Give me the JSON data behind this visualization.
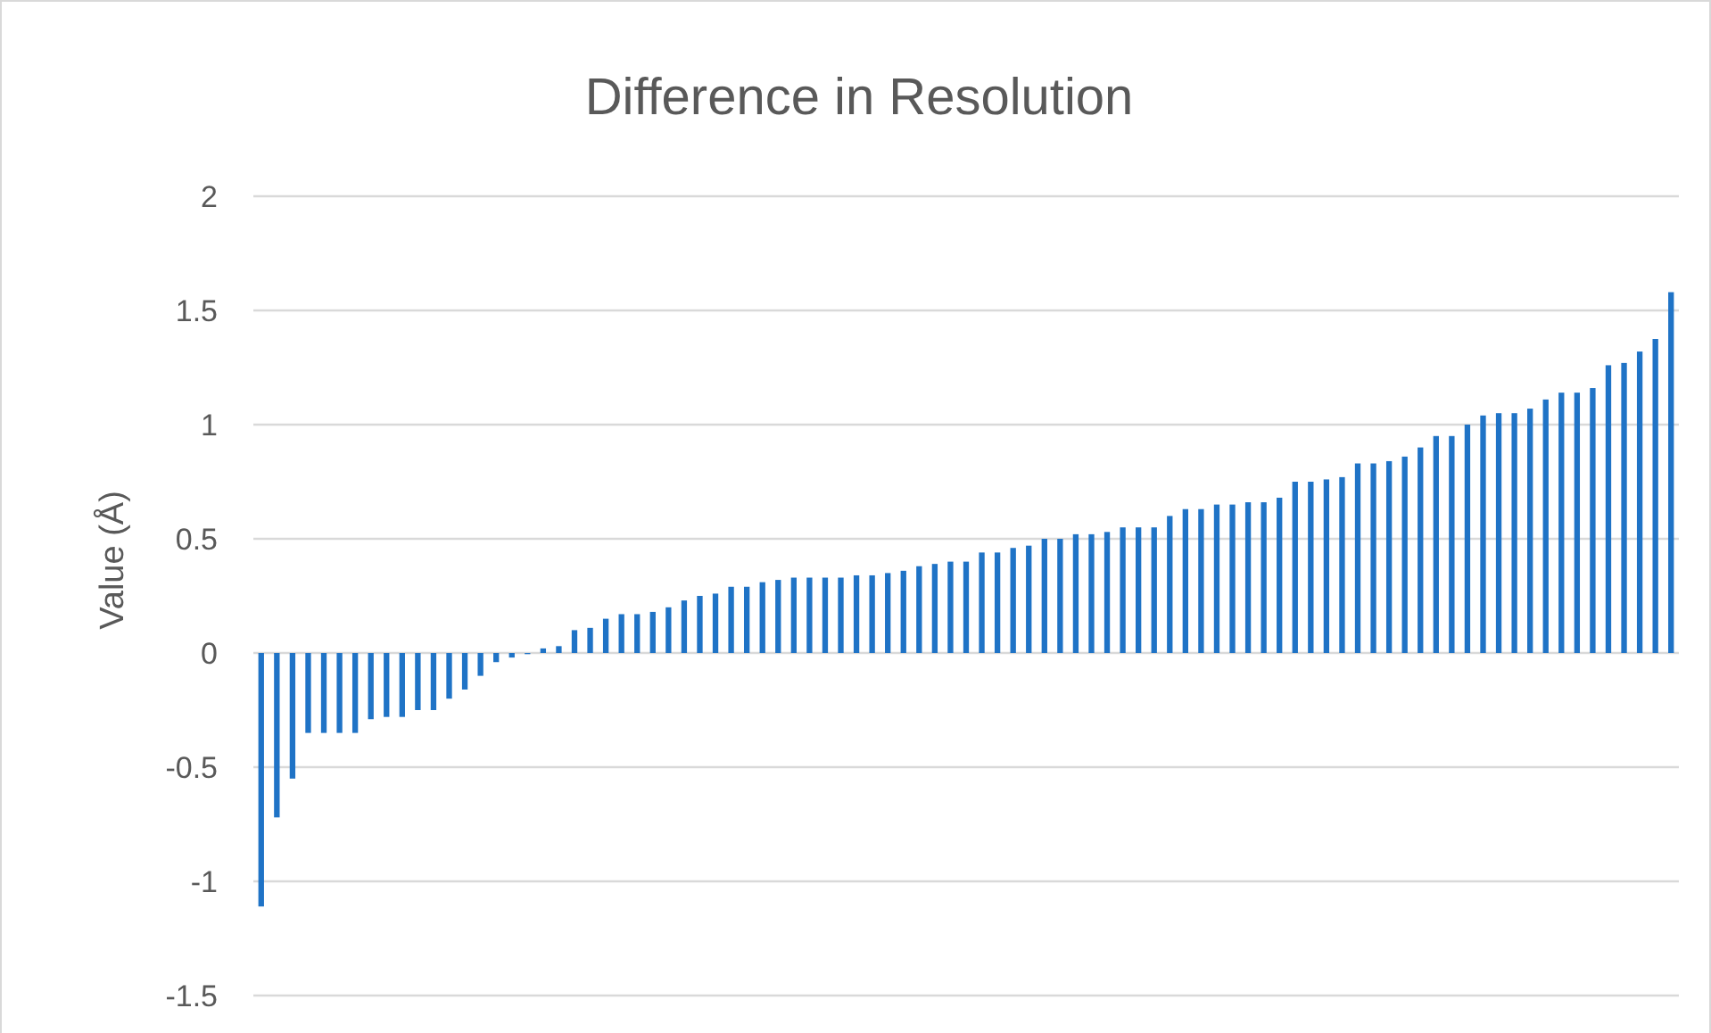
{
  "chart_data": {
    "type": "bar",
    "title": "Difference in Resolution",
    "ylabel": "Value (Å)",
    "categories": [
      null,
      null,
      null,
      null,
      null,
      null,
      null,
      null,
      null,
      null,
      null,
      null,
      null,
      null,
      null,
      null,
      null,
      null,
      null,
      null,
      null,
      null,
      null,
      null,
      null,
      null,
      null,
      null,
      null,
      null,
      null,
      null,
      null,
      null,
      null,
      null,
      null,
      null,
      null,
      null,
      null,
      null,
      null,
      null,
      null,
      null,
      null,
      null,
      null,
      null,
      null,
      null,
      null,
      null,
      null,
      null,
      null,
      null,
      null,
      null,
      null,
      null,
      null,
      null,
      null,
      null,
      null,
      null,
      null,
      null,
      null,
      null,
      null,
      null,
      null,
      null,
      null,
      null,
      null,
      null,
      null,
      null,
      null,
      null,
      null,
      null,
      null,
      null,
      null,
      null,
      null
    ],
    "values": [
      -1.11,
      -0.72,
      -0.55,
      -0.35,
      -0.35,
      -0.35,
      -0.35,
      -0.29,
      -0.28,
      -0.28,
      -0.25,
      -0.25,
      -0.2,
      -0.16,
      -0.1,
      -0.04,
      -0.02,
      -0.005,
      0.02,
      0.03,
      0.1,
      0.11,
      0.15,
      0.17,
      0.17,
      0.18,
      0.2,
      0.23,
      0.25,
      0.26,
      0.29,
      0.29,
      0.31,
      0.32,
      0.33,
      0.33,
      0.33,
      0.33,
      0.34,
      0.34,
      0.35,
      0.36,
      0.38,
      0.39,
      0.4,
      0.4,
      0.44,
      0.44,
      0.46,
      0.47,
      0.5,
      0.5,
      0.52,
      0.52,
      0.53,
      0.55,
      0.55,
      0.55,
      0.6,
      0.63,
      0.63,
      0.65,
      0.65,
      0.66,
      0.66,
      0.68,
      0.75,
      0.75,
      0.76,
      0.77,
      0.83,
      0.83,
      0.84,
      0.86,
      0.9,
      0.95,
      0.95,
      1.0,
      1.04,
      1.05,
      1.05,
      1.07,
      1.11,
      1.14,
      1.14,
      1.16,
      1.26,
      1.27,
      1.32,
      1.375,
      1.58
    ],
    "color": "#1f73c6",
    "ylim": [
      -1.5,
      2
    ],
    "yticks": [
      -1.5,
      -1,
      -0.5,
      0,
      0.5,
      1,
      1.5,
      2
    ],
    "grid": "y"
  }
}
